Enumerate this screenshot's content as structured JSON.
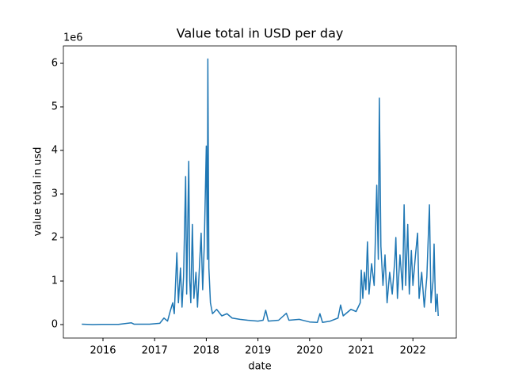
{
  "chart_data": {
    "type": "line",
    "title": "Value total in USD per day",
    "x_label": "date",
    "y_label": "value total in usd",
    "y_offset_label": "1e6",
    "color": "#1f77b4",
    "xlim": [
      2015.233,
      2022.84
    ],
    "xticks": [
      2016,
      2017,
      2018,
      2019,
      2020,
      2021,
      2022
    ],
    "ylim": [
      -0.309,
      6.4
    ],
    "yticks": [
      0,
      1,
      2,
      3,
      4,
      5,
      6
    ],
    "x": [
      2015.59,
      2015.8,
      2016.0,
      2016.3,
      2016.55,
      2016.6,
      2016.9,
      2017.1,
      2017.18,
      2017.25,
      2017.3,
      2017.35,
      2017.38,
      2017.43,
      2017.46,
      2017.5,
      2017.53,
      2017.56,
      2017.6,
      2017.62,
      2017.66,
      2017.68,
      2017.7,
      2017.73,
      2017.76,
      2017.8,
      2017.83,
      2017.87,
      2017.9,
      2017.93,
      2017.96,
      2017.99,
      2018.0,
      2018.02,
      2018.03,
      2018.05,
      2018.08,
      2018.12,
      2018.2,
      2018.3,
      2018.4,
      2018.5,
      2018.65,
      2018.8,
      2019.0,
      2019.1,
      2019.15,
      2019.2,
      2019.4,
      2019.55,
      2019.6,
      2019.8,
      2020.0,
      2020.15,
      2020.2,
      2020.25,
      2020.4,
      2020.55,
      2020.6,
      2020.65,
      2020.8,
      2020.9,
      2020.98,
      2021.0,
      2021.03,
      2021.06,
      2021.09,
      2021.12,
      2021.15,
      2021.2,
      2021.25,
      2021.3,
      2021.33,
      2021.35,
      2021.38,
      2021.42,
      2021.46,
      2021.5,
      2021.55,
      2021.6,
      2021.65,
      2021.67,
      2021.7,
      2021.75,
      2021.8,
      2021.83,
      2021.86,
      2021.9,
      2021.93,
      2021.97,
      2022.0,
      2022.05,
      2022.09,
      2022.12,
      2022.17,
      2022.22,
      2022.27,
      2022.32,
      2022.35,
      2022.39,
      2022.41,
      2022.44,
      2022.47,
      2022.49
    ],
    "values": [
      0.01,
      0.0,
      0.005,
      0.005,
      0.04,
      0.01,
      0.01,
      0.03,
      0.15,
      0.08,
      0.3,
      0.5,
      0.25,
      1.65,
      0.5,
      1.3,
      0.4,
      1.1,
      3.4,
      0.7,
      3.75,
      1.0,
      0.5,
      2.3,
      0.6,
      1.2,
      0.4,
      1.4,
      2.1,
      0.8,
      1.8,
      3.5,
      4.1,
      1.5,
      6.1,
      1.3,
      0.5,
      0.25,
      0.35,
      0.2,
      0.25,
      0.15,
      0.12,
      0.1,
      0.08,
      0.1,
      0.33,
      0.08,
      0.1,
      0.26,
      0.1,
      0.12,
      0.06,
      0.05,
      0.25,
      0.05,
      0.08,
      0.15,
      0.45,
      0.2,
      0.35,
      0.3,
      0.5,
      1.25,
      0.6,
      1.2,
      0.8,
      1.9,
      0.7,
      1.4,
      0.9,
      3.2,
      1.5,
      5.2,
      1.8,
      0.9,
      1.6,
      0.5,
      1.2,
      0.7,
      1.5,
      2.0,
      0.6,
      1.6,
      0.8,
      2.75,
      0.9,
      2.3,
      0.7,
      1.7,
      0.9,
      1.6,
      2.1,
      0.6,
      1.2,
      0.4,
      1.1,
      2.75,
      0.5,
      1.0,
      1.85,
      0.3,
      0.7,
      0.2
    ]
  }
}
